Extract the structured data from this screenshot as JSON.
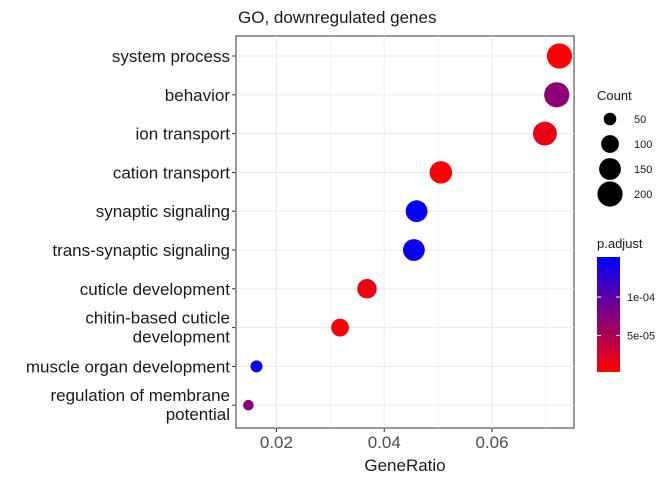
{
  "chart_data": {
    "type": "scatter",
    "title": "GO, downregulated genes",
    "xlabel": "GeneRatio",
    "ylabel": "",
    "xlim": [
      0.0125,
      0.0752
    ],
    "xticks": [
      0.02,
      0.04,
      0.06
    ],
    "xtick_labels": [
      "0.02",
      "0.04",
      "0.06"
    ],
    "grid": true,
    "categories": [
      [
        "system process"
      ],
      [
        "behavior"
      ],
      [
        "ion transport"
      ],
      [
        "cation transport"
      ],
      [
        "synaptic signaling"
      ],
      [
        "trans-synaptic signaling"
      ],
      [
        "cuticle development"
      ],
      [
        "chitin-based cuticle",
        "development"
      ],
      [
        "muscle organ development"
      ],
      [
        "regulation of membrane",
        "potential"
      ]
    ],
    "points": [
      {
        "gene_ratio": 0.0725,
        "count": 200,
        "p_adjust": 5e-06
      },
      {
        "gene_ratio": 0.072,
        "count": 200,
        "p_adjust": 7e-05
      },
      {
        "gene_ratio": 0.0698,
        "count": 180,
        "p_adjust": 1.5e-05
      },
      {
        "gene_ratio": 0.0505,
        "count": 160,
        "p_adjust": 5e-06
      },
      {
        "gene_ratio": 0.046,
        "count": 150,
        "p_adjust": 0.000148
      },
      {
        "gene_ratio": 0.0455,
        "count": 150,
        "p_adjust": 0.000145
      },
      {
        "gene_ratio": 0.0368,
        "count": 120,
        "p_adjust": 1.2e-05
      },
      {
        "gene_ratio": 0.0318,
        "count": 100,
        "p_adjust": 8e-06
      },
      {
        "gene_ratio": 0.0163,
        "count": 45,
        "p_adjust": 0.000148
      },
      {
        "gene_ratio": 0.0148,
        "count": 35,
        "p_adjust": 7e-05
      }
    ],
    "legend_size": {
      "title": "Count",
      "values": [
        50,
        100,
        150,
        200
      ],
      "labels": [
        "50",
        "100",
        "150",
        "200"
      ]
    },
    "legend_color": {
      "title": "p.adjust",
      "range": [
        2.5e-06,
        0.000152
      ],
      "tick_values": [
        0.0001,
        5e-05
      ],
      "tick_labels": [
        "1e-04",
        "5e-05"
      ],
      "low_color": "#ff0000",
      "high_color": "#0000ff"
    },
    "legend_placement": "right"
  }
}
